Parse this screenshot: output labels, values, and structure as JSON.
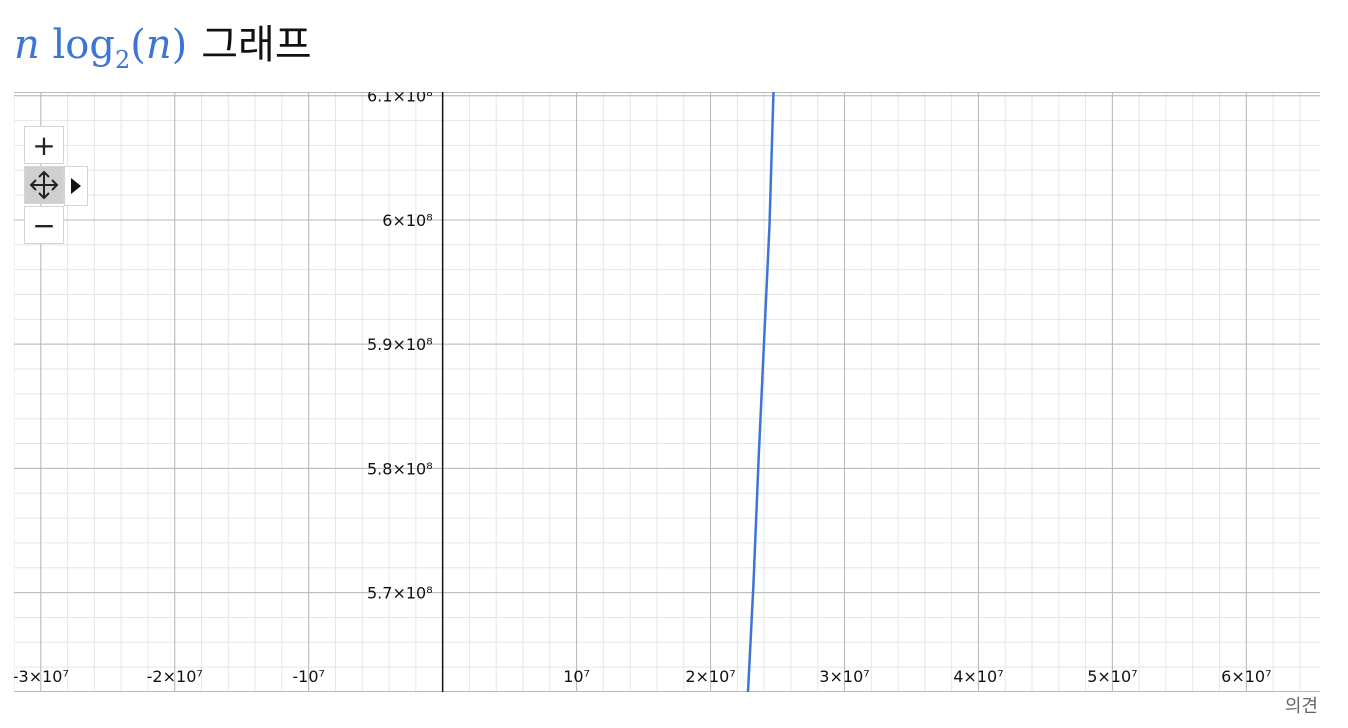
{
  "title": {
    "formula_var": "n",
    "formula_log": "log",
    "formula_base": "2",
    "formula_arg": "n",
    "word": "그래프"
  },
  "controls": {
    "zoom_in": "+",
    "zoom_out": "−",
    "pan_icon": "move-icon",
    "expand_icon": "play-triangle-icon"
  },
  "feedback_label": "의견",
  "colors": {
    "curve": "#3d75d6",
    "axis": "#111111",
    "major_grid": "#b8b8b8",
    "minor_grid": "#e6e6e6"
  },
  "chart_data": {
    "type": "line",
    "title": "n log2(n) 그래프",
    "function": "n*log2(n)",
    "xlim": [
      -32000000,
      65500000
    ],
    "ylim": [
      562000000,
      610300000
    ],
    "x_ticks": [
      {
        "value": -30000000,
        "label": "-3×10⁷"
      },
      {
        "value": -20000000,
        "label": "-2×10⁷"
      },
      {
        "value": -10000000,
        "label": "-10⁷"
      },
      {
        "value": 10000000,
        "label": "10⁷"
      },
      {
        "value": 20000000,
        "label": "2×10⁷"
      },
      {
        "value": 30000000,
        "label": "3×10⁷"
      },
      {
        "value": 40000000,
        "label": "4×10⁷"
      },
      {
        "value": 50000000,
        "label": "5×10⁷"
      },
      {
        "value": 60000000,
        "label": "6×10⁷"
      }
    ],
    "y_ticks": [
      {
        "value": 610000000,
        "label": "6.1×10⁸"
      },
      {
        "value": 600000000,
        "label": "6×10⁸"
      },
      {
        "value": 590000000,
        "label": "5.9×10⁸"
      },
      {
        "value": 580000000,
        "label": "5.8×10⁸"
      },
      {
        "value": 570000000,
        "label": "5.7×10⁸"
      }
    ],
    "x_minor_step": 2000000,
    "y_minor_step": 2000000,
    "grid": true,
    "series": [
      {
        "x": [
          22800000,
          23200000,
          23600000,
          24000000,
          24400000,
          24700000
        ],
        "y": [
          562000000,
          570600000,
          581100000,
          590300000,
          599600000,
          610300000
        ]
      }
    ]
  }
}
